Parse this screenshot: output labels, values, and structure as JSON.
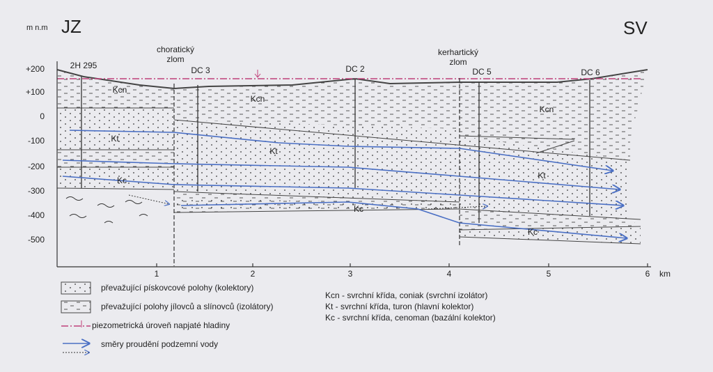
{
  "directions": {
    "left": "JZ",
    "right": "SV"
  },
  "axis": {
    "y_unit": "m n.m",
    "y_ticks": [
      "+200",
      "+100",
      "0",
      "-100",
      "-200",
      "-300",
      "-400",
      "-500"
    ],
    "x_ticks": [
      "1",
      "2",
      "3",
      "4",
      "5",
      "6"
    ],
    "x_unit": "km"
  },
  "faults": [
    {
      "lines": [
        "choratický",
        "zlom"
      ]
    },
    {
      "lines": [
        "kerhartický",
        "zlom"
      ]
    }
  ],
  "wells": [
    "2H 295",
    "DC 3",
    "DC 2",
    "DC 5",
    "DC 6"
  ],
  "layer_labels": [
    "Kcn",
    "Kcn",
    "Kcn",
    "Kt",
    "Kt",
    "Kt",
    "Kc",
    "Kc",
    "Kc"
  ],
  "legend": [
    "převažující pískovcové polohy (kolektory)",
    "převažující polohy jílovců a slínovců (izolátory)",
    "piezometrická úroveň napjaté hladiny",
    "směry proudění podzemní vody"
  ],
  "abbreviations": [
    "Kcn - svrchní křída, coniak (svrchní izolátor)",
    "Kt - svrchní křída, turon (hlavní kolektor)",
    "Kc - svrchní křída, cenoman (bazální kolektor)"
  ]
}
